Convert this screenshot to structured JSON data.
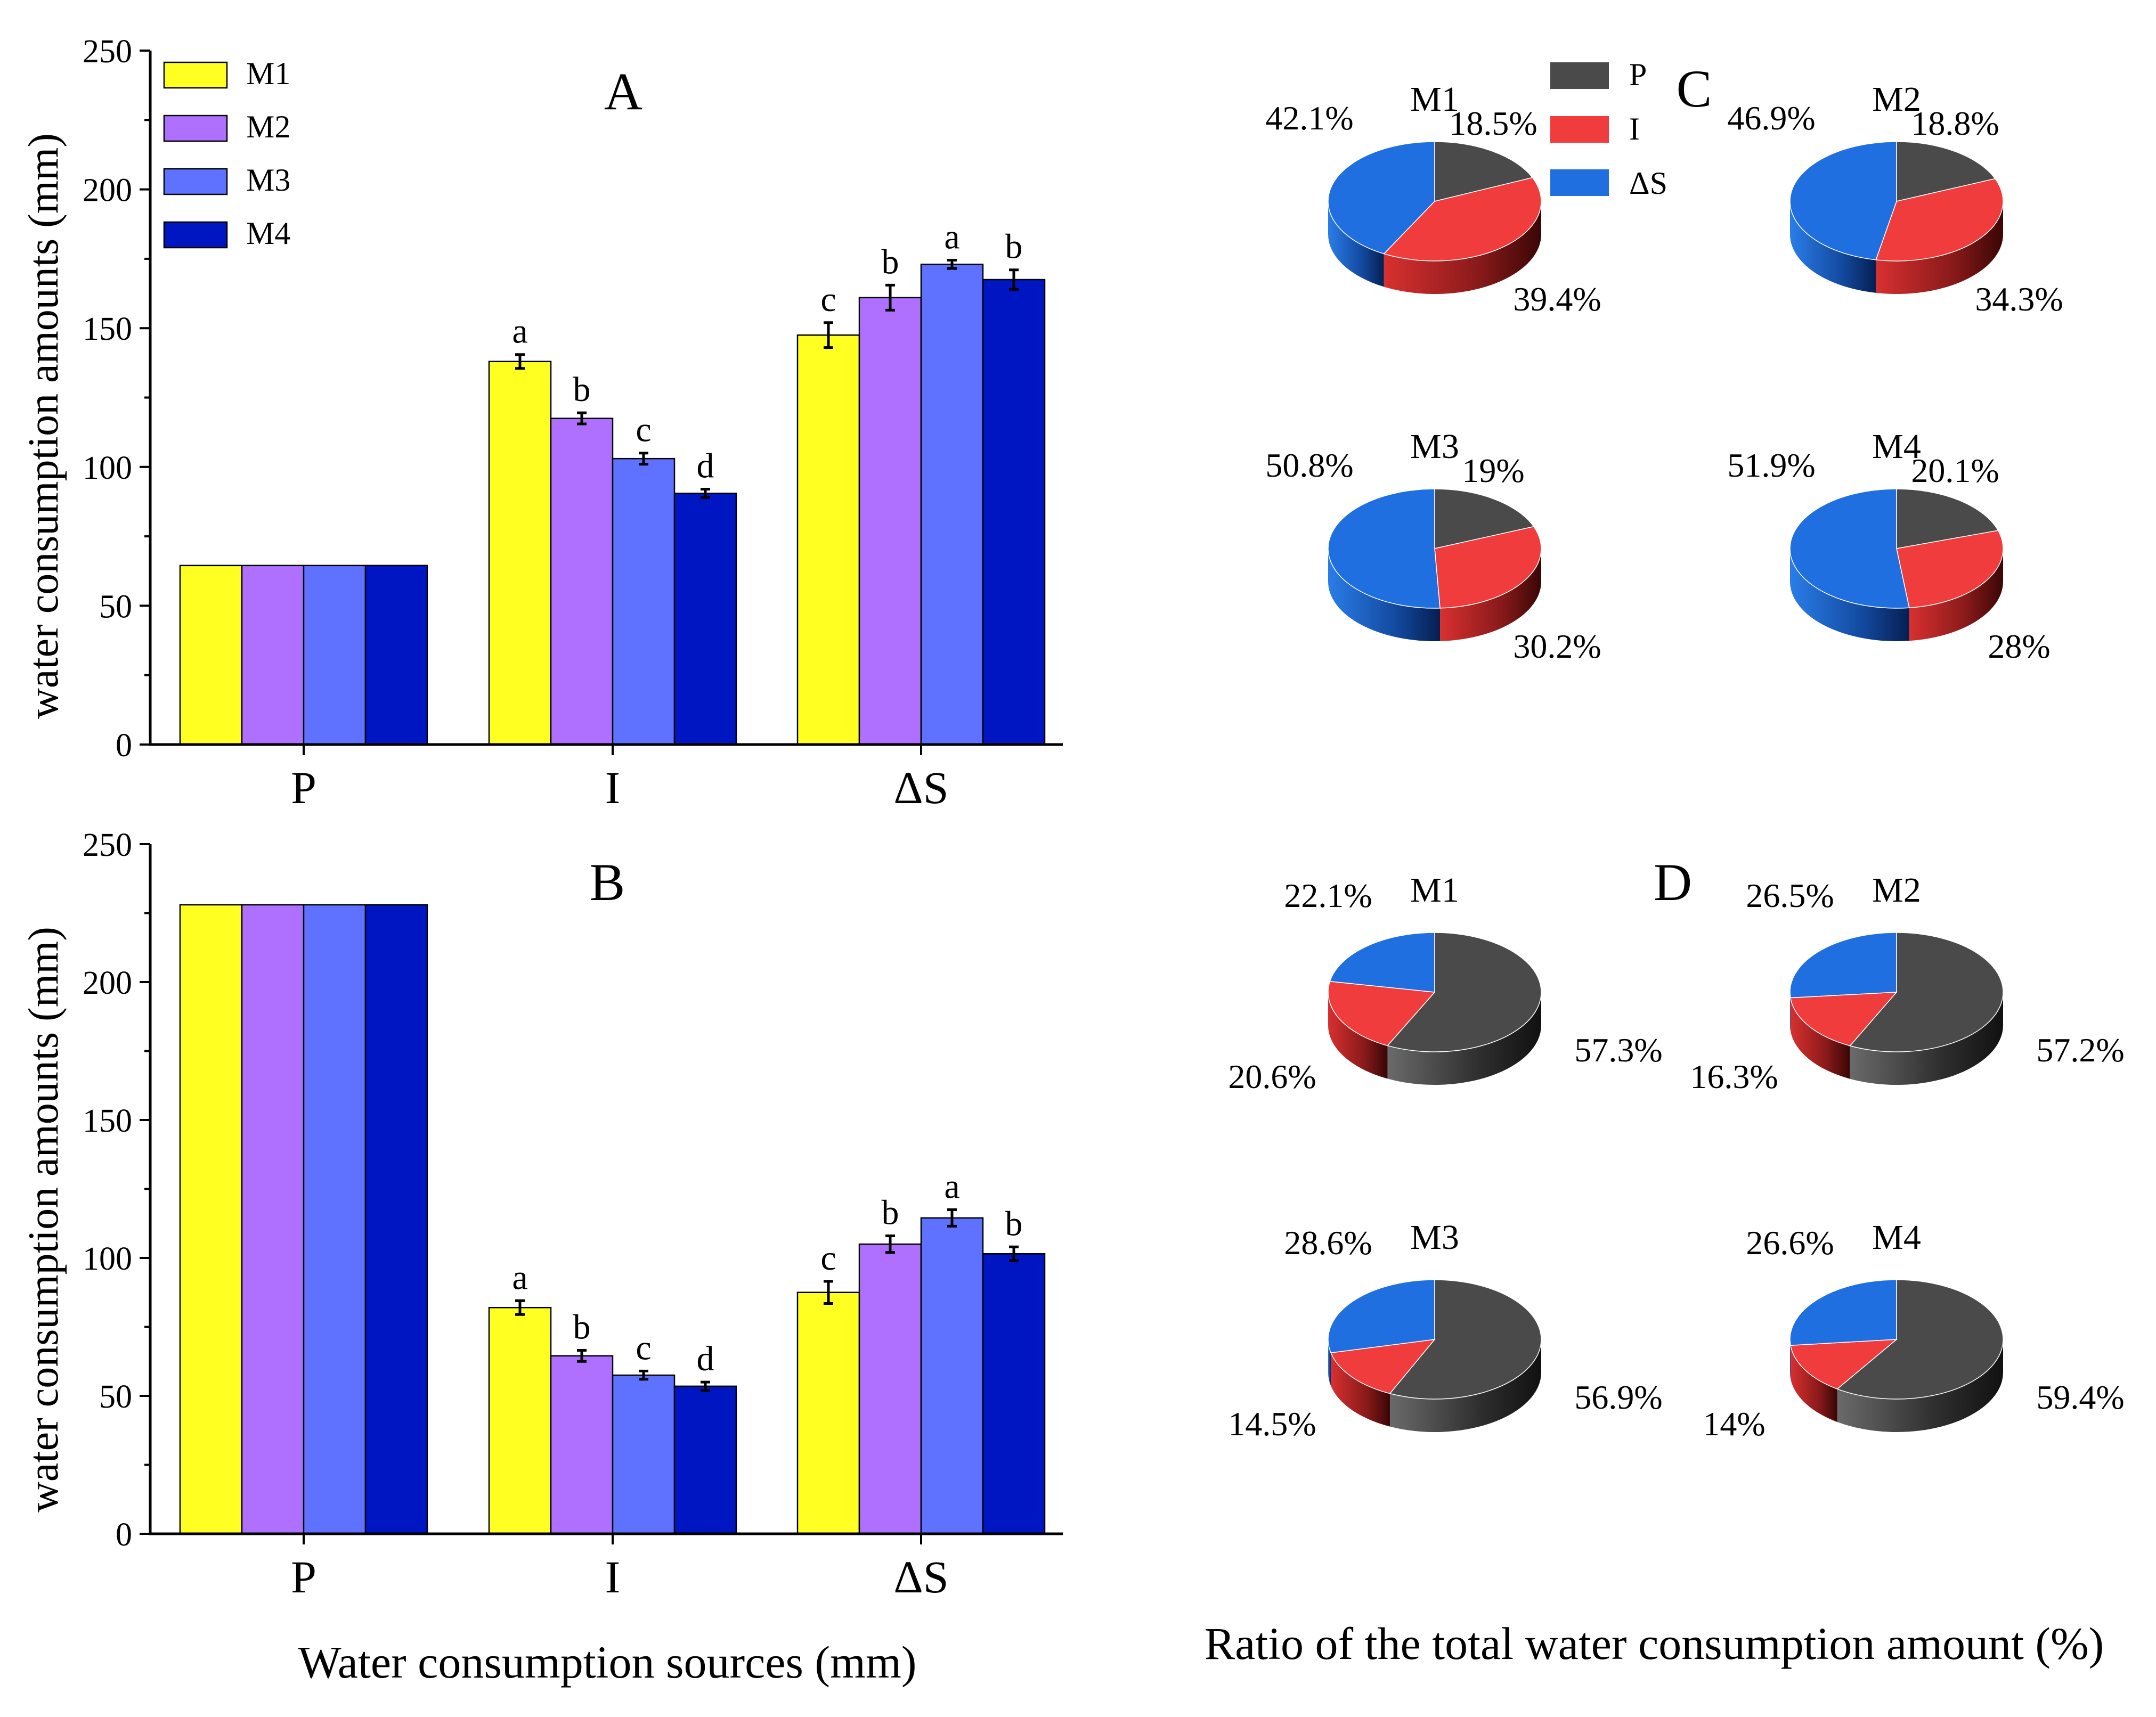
{
  "colors": {
    "M1": "#ffff21",
    "M2": "#b070ff",
    "M3": "#5f71ff",
    "M4": "#0016c2",
    "P": "#4a4a4a",
    "I": "#f03c3c",
    "dS": "#1f6fe0"
  },
  "chart_data": [
    {
      "id": "A",
      "type": "bar",
      "panel_label": "A",
      "ylabel": "water consumption amounts (mm)",
      "xlabel": "",
      "categories": [
        "P",
        "I",
        "ΔS"
      ],
      "ylim": [
        0,
        250
      ],
      "yticks": [
        "0",
        "50",
        "100",
        "150",
        "200",
        "250"
      ],
      "legend": {
        "placement": "top-left",
        "entries": [
          "M1",
          "M2",
          "M3",
          "M4"
        ]
      },
      "series": [
        {
          "name": "M1",
          "values": [
            64.5,
            138,
            147.5
          ],
          "errors": [
            0,
            2.5,
            4.5
          ],
          "letters": [
            "",
            "a",
            "c"
          ]
        },
        {
          "name": "M2",
          "values": [
            64.5,
            117.5,
            161
          ],
          "errors": [
            0,
            2,
            4.5
          ],
          "letters": [
            "",
            "b",
            "b"
          ]
        },
        {
          "name": "M3",
          "values": [
            64.5,
            103,
            173
          ],
          "errors": [
            0,
            2,
            1.5
          ],
          "letters": [
            "",
            "c",
            "a"
          ]
        },
        {
          "name": "M4",
          "values": [
            64.5,
            90.5,
            167.5
          ],
          "errors": [
            0,
            1.5,
            3.5
          ],
          "letters": [
            "",
            "d",
            "b"
          ]
        }
      ]
    },
    {
      "id": "B",
      "type": "bar",
      "panel_label": "B",
      "ylabel": "water consumption amounts (mm)",
      "xlabel": "Water consumption sources (mm)",
      "categories": [
        "P",
        "I",
        "ΔS"
      ],
      "ylim": [
        0,
        250
      ],
      "yticks": [
        "0",
        "50",
        "100",
        "150",
        "200",
        "250"
      ],
      "series": [
        {
          "name": "M1",
          "values": [
            228,
            82,
            87.5
          ],
          "errors": [
            0,
            2.5,
            4
          ],
          "letters": [
            "",
            "a",
            "c"
          ]
        },
        {
          "name": "M2",
          "values": [
            228,
            64.5,
            105
          ],
          "errors": [
            0,
            2,
            3
          ],
          "letters": [
            "",
            "b",
            "b"
          ]
        },
        {
          "name": "M3",
          "values": [
            228,
            57.5,
            114.5
          ],
          "errors": [
            0,
            1.5,
            3
          ],
          "letters": [
            "",
            "c",
            "a"
          ]
        },
        {
          "name": "M4",
          "values": [
            228,
            53.5,
            101.5
          ],
          "errors": [
            0,
            1.5,
            2.5
          ],
          "letters": [
            "",
            "d",
            "b"
          ]
        }
      ]
    },
    {
      "id": "C",
      "type": "pie",
      "panel_label": "C",
      "legend": {
        "placement": "top",
        "entries": [
          "P",
          "I",
          "ΔS"
        ]
      },
      "pies": [
        {
          "name": "M1",
          "slices": {
            "P": 18.5,
            "I": 39.4,
            "dS": 42.1
          },
          "labels": {
            "P": "18.5%",
            "I": "39.4%",
            "dS": "42.1%"
          }
        },
        {
          "name": "M2",
          "slices": {
            "P": 18.8,
            "I": 34.3,
            "dS": 46.9
          },
          "labels": {
            "P": "18.8%",
            "I": "34.3%",
            "dS": "46.9%"
          }
        },
        {
          "name": "M3",
          "slices": {
            "P": 19,
            "I": 30.2,
            "dS": 50.8
          },
          "labels": {
            "P": "19%",
            "I": "30.2%",
            "dS": "50.8%"
          }
        },
        {
          "name": "M4",
          "slices": {
            "P": 20.1,
            "I": 28,
            "dS": 51.9
          },
          "labels": {
            "P": "20.1%",
            "I": "28%",
            "dS": "51.9%"
          }
        }
      ]
    },
    {
      "id": "D",
      "type": "pie",
      "panel_label": "D",
      "xlabel": "Ratio of the total water consumption amount (%)",
      "pies": [
        {
          "name": "M1",
          "slices": {
            "P": 57.3,
            "I": 20.6,
            "dS": 22.1
          },
          "labels": {
            "P": "57.3%",
            "I": "20.6%",
            "dS": "22.1%"
          }
        },
        {
          "name": "M2",
          "slices": {
            "P": 57.2,
            "I": 16.3,
            "dS": 26.5
          },
          "labels": {
            "P": "57.2%",
            "I": "16.3%",
            "dS": "26.5%"
          }
        },
        {
          "name": "M3",
          "slices": {
            "P": 56.9,
            "I": 14.5,
            "dS": 28.6
          },
          "labels": {
            "P": "56.9%",
            "I": "14.5%",
            "dS": "28.6%"
          }
        },
        {
          "name": "M4",
          "slices": {
            "P": 59.4,
            "I": 14,
            "dS": 26.6
          },
          "labels": {
            "P": "59.4%",
            "I": "14%",
            "dS": "26.6%"
          }
        }
      ]
    }
  ]
}
